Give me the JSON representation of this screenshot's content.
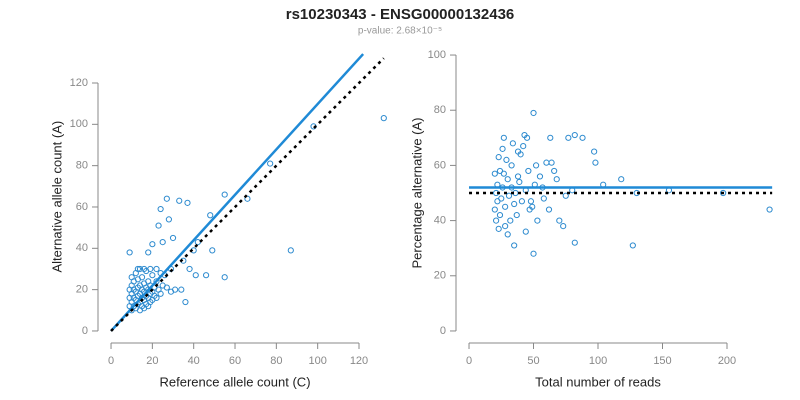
{
  "title": "rs10230343 - ENSG00000132436",
  "subtitle": "p-value: 2.68×10⁻⁵",
  "chart_data": [
    {
      "type": "scatter",
      "x_label": "Reference allele count (C)",
      "y_label": "Alternative allele count (A)",
      "xlim": [
        -5,
        135
      ],
      "ylim": [
        -5,
        135
      ],
      "xticks": [
        0,
        20,
        40,
        60,
        80,
        100,
        120
      ],
      "yticks": [
        0,
        20,
        40,
        60,
        80,
        100,
        120
      ],
      "color": "#2e8bcf",
      "x": [
        132,
        98,
        77,
        87,
        66,
        55,
        48,
        55,
        49,
        42,
        40,
        33,
        37,
        27,
        24,
        23,
        28,
        30,
        38,
        46,
        36,
        34,
        41,
        35,
        25,
        20,
        18,
        9,
        29,
        31,
        27,
        29,
        10,
        10,
        10,
        10,
        10,
        11,
        11,
        11,
        11,
        12,
        12,
        12,
        12,
        13,
        13,
        13,
        13,
        14,
        14,
        14,
        14,
        14,
        15,
        15,
        15,
        15,
        16,
        16,
        16,
        16,
        17,
        17,
        17,
        17,
        18,
        18,
        18,
        18,
        19,
        19,
        19,
        20,
        20,
        20,
        21,
        21,
        22,
        22,
        23,
        24,
        25,
        26,
        22,
        19,
        16,
        13,
        24,
        9,
        9,
        9
      ],
      "y": [
        103,
        99,
        81,
        39,
        64,
        66,
        56,
        26,
        39,
        43,
        39,
        63,
        62,
        64,
        59,
        51,
        54,
        45,
        30,
        27,
        14,
        20,
        27,
        34,
        43,
        42,
        38,
        38,
        30,
        20,
        21,
        19,
        10,
        14,
        18,
        22,
        26,
        12,
        16,
        20,
        24,
        11,
        15,
        19,
        28,
        13,
        17,
        21,
        25,
        10,
        14,
        18,
        22,
        30,
        12,
        16,
        20,
        26,
        11,
        15,
        19,
        23,
        13,
        17,
        21,
        29,
        12,
        16,
        20,
        24,
        14,
        18,
        22,
        15,
        19,
        27,
        17,
        21,
        16,
        24,
        20,
        18,
        22,
        27,
        30,
        30,
        30,
        30,
        28,
        12,
        16,
        20
      ],
      "lines": [
        {
          "x": [
            0,
            122
          ],
          "y": [
            0,
            134
          ],
          "color": "#1f8ad6",
          "style": "solid"
        },
        {
          "x": [
            0,
            132
          ],
          "y": [
            0,
            132
          ],
          "color": "#000000",
          "style": "dashed"
        }
      ]
    },
    {
      "type": "scatter",
      "x_label": "Total number of reads",
      "y_label": "Percentage alternative (A)",
      "xlim": [
        -8,
        240
      ],
      "ylim": [
        -4,
        104
      ],
      "xticks": [
        0,
        50,
        100,
        150,
        200
      ],
      "yticks": [
        0,
        20,
        40,
        60,
        80,
        100
      ],
      "color": "#2e8bcf",
      "x": [
        233,
        197,
        155,
        130,
        127,
        118,
        104,
        98,
        97,
        88,
        82,
        77,
        80,
        82,
        73,
        75,
        70,
        68,
        66,
        64,
        63,
        60,
        57,
        55,
        53,
        52,
        50,
        50,
        48,
        47,
        45,
        43,
        42,
        40,
        38,
        36,
        35,
        34,
        33,
        32,
        30,
        30,
        29,
        28,
        27,
        26,
        25,
        24,
        24,
        23,
        23,
        22,
        22,
        21,
        21,
        20,
        20,
        26,
        28,
        31,
        33,
        35,
        37,
        39,
        41,
        44,
        46,
        49,
        51,
        58,
        62,
        44,
        38,
        27
      ],
      "y": [
        44,
        50,
        51,
        50,
        31,
        55,
        53,
        61,
        65,
        70,
        71,
        70,
        51,
        32,
        38,
        49,
        40,
        55,
        58,
        61,
        70,
        61,
        52,
        56,
        40,
        60,
        79,
        28,
        47,
        44,
        70,
        71,
        67,
        64,
        56,
        50,
        31,
        68,
        60,
        40,
        35,
        55,
        62,
        45,
        70,
        52,
        48,
        42,
        58,
        37,
        63,
        47,
        53,
        40,
        50,
        44,
        57,
        66,
        38,
        49,
        52,
        46,
        42,
        54,
        47,
        51,
        58,
        45,
        53,
        48,
        44,
        36,
        65,
        57
      ],
      "lines": [
        {
          "x": [
            0,
            235
          ],
          "y": [
            52,
            52
          ],
          "color": "#1f8ad6",
          "style": "solid"
        },
        {
          "x": [
            0,
            235
          ],
          "y": [
            50,
            50
          ],
          "color": "#000000",
          "style": "dashed"
        }
      ]
    }
  ]
}
